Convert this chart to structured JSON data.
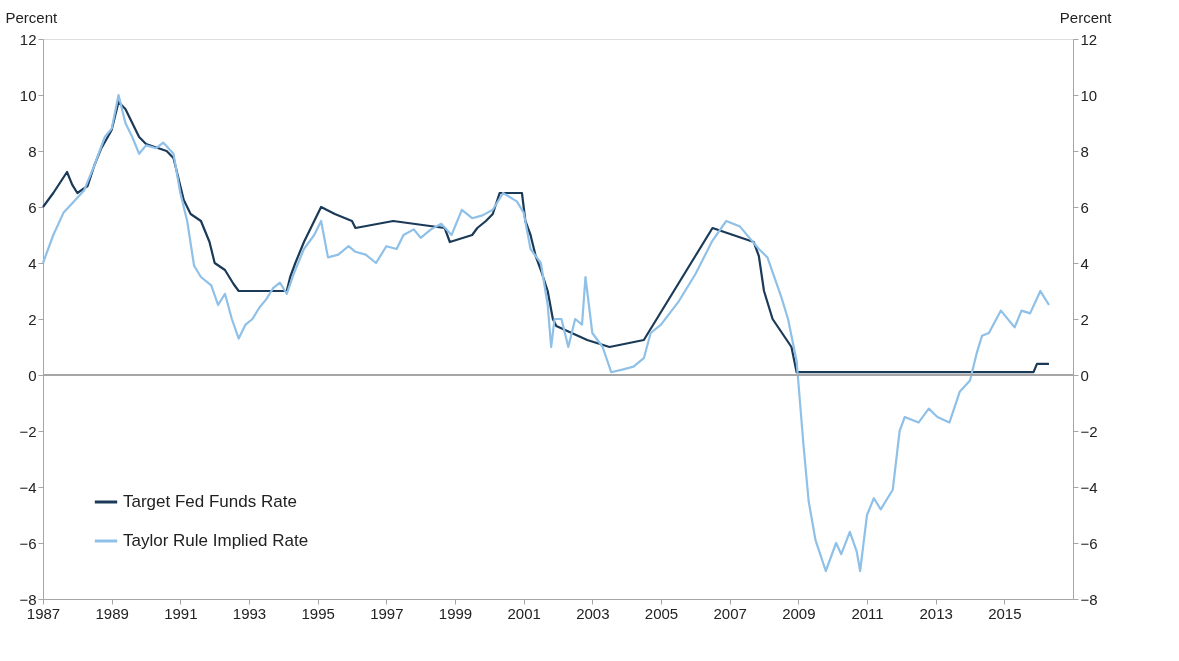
{
  "chart_data": {
    "type": "line",
    "ylabel": "Percent",
    "y2label": "Percent",
    "xlim": [
      1987,
      2017
    ],
    "xticks": [
      1987,
      1989,
      1991,
      1993,
      1995,
      1997,
      1999,
      2001,
      2003,
      2005,
      2007,
      2009,
      2011,
      2013,
      2015
    ],
    "ylim": [
      -8,
      12
    ],
    "yticks": [
      -8,
      -6,
      -4,
      -2,
      0,
      2,
      4,
      6,
      8,
      10,
      12
    ],
    "y2lim": [
      -8,
      12
    ],
    "y2ticks": [
      -8,
      -6,
      -4,
      -2,
      0,
      2,
      4,
      6,
      8,
      10,
      12
    ],
    "grid": false,
    "legend": "bottom left",
    "line_style": "solid",
    "marker": "none",
    "ref_lines": [
      {
        "axis": "y2",
        "value": 0,
        "color": "#a6a6a6"
      }
    ],
    "series": [
      {
        "name": "Target Fed Funds Rate",
        "color": "#1b3a57",
        "x": [
          1987.0,
          1987.3,
          1987.7,
          1987.85,
          1988.0,
          1988.3,
          1988.5,
          1988.7,
          1989.0,
          1989.2,
          1989.4,
          1989.6,
          1989.8,
          1990.0,
          1990.6,
          1990.8,
          1990.95,
          1991.1,
          1991.3,
          1991.6,
          1991.85,
          1992.0,
          1992.3,
          1992.55,
          1992.7,
          1994.1,
          1994.2,
          1994.35,
          1994.6,
          1994.9,
          1995.1,
          1995.5,
          1996.0,
          1996.1,
          1997.2,
          1998.7,
          1998.85,
          1999.5,
          1999.65,
          1999.9,
          2000.1,
          2000.3,
          2000.95,
          2001.05,
          2001.2,
          2001.35,
          2001.5,
          2001.7,
          2001.85,
          2001.95,
          2002.85,
          2003.5,
          2004.5,
          2005.0,
          2005.5,
          2006.0,
          2006.5,
          2007.7,
          2007.85,
          2008.0,
          2008.25,
          2008.8,
          2008.95,
          2015.85,
          2015.95,
          2016.3
        ],
        "values": [
          6.0,
          6.5,
          7.25,
          6.8,
          6.5,
          6.75,
          7.5,
          8.1,
          8.75,
          9.75,
          9.5,
          9.0,
          8.5,
          8.25,
          8.0,
          7.75,
          7.0,
          6.25,
          5.75,
          5.5,
          4.75,
          4.0,
          3.75,
          3.25,
          3.0,
          3.0,
          3.5,
          4.0,
          4.75,
          5.5,
          6.0,
          5.75,
          5.5,
          5.25,
          5.5,
          5.25,
          4.75,
          5.0,
          5.25,
          5.5,
          5.75,
          6.5,
          6.5,
          5.5,
          5.0,
          4.25,
          3.75,
          3.0,
          2.0,
          1.75,
          1.25,
          1.0,
          1.25,
          2.25,
          3.25,
          4.25,
          5.25,
          4.75,
          4.25,
          3.0,
          2.0,
          1.0,
          0.1,
          0.1,
          0.4,
          0.4
        ]
      },
      {
        "name": "Taylor Rule Implied Rate",
        "color": "#8fc0e8",
        "x": [
          1987.0,
          1987.3,
          1987.6,
          1987.9,
          1988.2,
          1988.5,
          1988.8,
          1989.0,
          1989.2,
          1989.4,
          1989.6,
          1989.8,
          1990.0,
          1990.3,
          1990.5,
          1990.8,
          1991.0,
          1991.2,
          1991.4,
          1991.6,
          1991.9,
          1992.1,
          1992.3,
          1992.5,
          1992.7,
          1992.9,
          1993.1,
          1993.3,
          1993.5,
          1993.7,
          1993.9,
          1994.1,
          1994.3,
          1994.6,
          1994.9,
          1995.1,
          1995.3,
          1995.6,
          1995.9,
          1996.1,
          1996.4,
          1996.7,
          1997.0,
          1997.3,
          1997.5,
          1997.8,
          1998.0,
          1998.3,
          1998.6,
          1998.9,
          1999.2,
          1999.5,
          1999.8,
          2000.1,
          2000.4,
          2000.8,
          2001.0,
          2001.2,
          2001.5,
          2001.7,
          2001.8,
          2001.9,
          2002.1,
          2002.3,
          2002.5,
          2002.7,
          2002.8,
          2003.0,
          2003.3,
          2003.55,
          2003.9,
          2004.2,
          2004.5,
          2004.7,
          2005.0,
          2005.5,
          2006.0,
          2006.5,
          2006.9,
          2007.3,
          2007.85,
          2008.1,
          2008.5,
          2008.7,
          2008.95,
          2009.15,
          2009.3,
          2009.5,
          2009.8,
          2010.1,
          2010.25,
          2010.5,
          2010.7,
          2010.8,
          2011.0,
          2011.2,
          2011.4,
          2011.75,
          2011.95,
          2012.1,
          2012.5,
          2012.8,
          2013.05,
          2013.4,
          2013.7,
          2014.0,
          2014.2,
          2014.35,
          2014.55,
          2014.9,
          2015.3,
          2015.5,
          2015.75,
          2016.05,
          2016.3
        ],
        "values": [
          4.0,
          5.0,
          5.8,
          6.2,
          6.6,
          7.5,
          8.5,
          8.8,
          10.0,
          9.0,
          8.5,
          7.9,
          8.2,
          8.1,
          8.3,
          7.9,
          6.5,
          5.5,
          3.9,
          3.5,
          3.2,
          2.5,
          2.9,
          2.0,
          1.3,
          1.8,
          2.0,
          2.4,
          2.7,
          3.1,
          3.3,
          2.9,
          3.6,
          4.5,
          5.0,
          5.5,
          4.2,
          4.3,
          4.6,
          4.4,
          4.3,
          4.0,
          4.6,
          4.5,
          5.0,
          5.2,
          4.9,
          5.2,
          5.4,
          5.0,
          5.9,
          5.6,
          5.7,
          5.9,
          6.5,
          6.2,
          5.8,
          4.5,
          4.0,
          2.5,
          1.0,
          2.0,
          2.0,
          1.0,
          2.0,
          1.8,
          3.5,
          1.5,
          1.0,
          0.1,
          0.2,
          0.3,
          0.6,
          1.5,
          1.8,
          2.6,
          3.6,
          4.8,
          5.5,
          5.3,
          4.5,
          4.2,
          2.8,
          2.0,
          0.5,
          -2.5,
          -4.5,
          -5.9,
          -7.0,
          -6.0,
          -6.4,
          -5.6,
          -6.3,
          -7.0,
          -5.0,
          -4.4,
          -4.8,
          -4.1,
          -2.0,
          -1.5,
          -1.7,
          -1.2,
          -1.5,
          -1.7,
          -0.6,
          -0.2,
          0.8,
          1.4,
          1.5,
          2.3,
          1.7,
          2.3,
          2.2,
          3.0,
          2.5
        ]
      }
    ]
  }
}
